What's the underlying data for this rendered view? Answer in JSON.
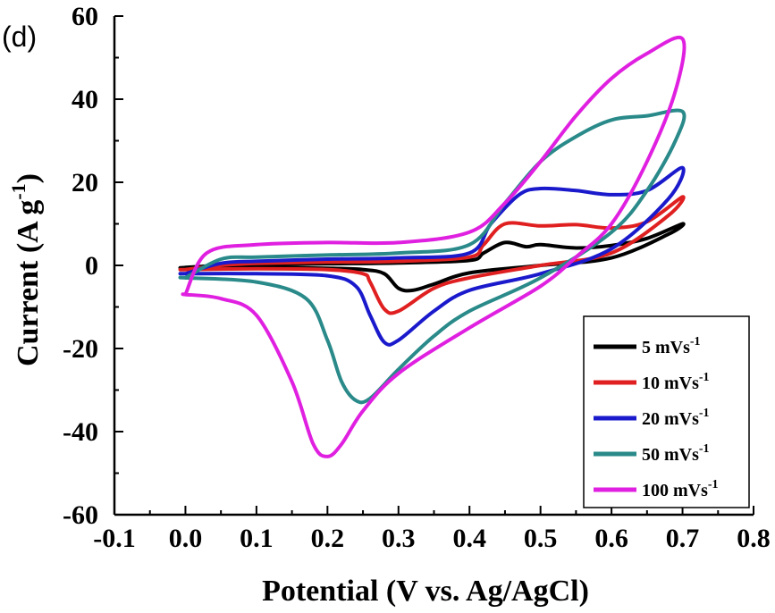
{
  "panel_label": "(d)",
  "chart_data": {
    "type": "line",
    "xlabel": "Potential (V vs. Ag/AgCl)",
    "ylabel": "Current (A g",
    "ylabel_sup": "-1",
    "ylabel_end": ")",
    "xlim": [
      -0.1,
      0.8
    ],
    "ylim": [
      -60,
      60
    ],
    "xticks": [
      -0.1,
      0.0,
      0.1,
      0.2,
      0.3,
      0.4,
      0.5,
      0.6,
      0.7,
      0.8
    ],
    "xtick_labels": [
      "-0.1",
      "0.0",
      "0.1",
      "0.2",
      "0.3",
      "0.4",
      "0.5",
      "0.6",
      "0.7",
      "0.8"
    ],
    "yticks": [
      -60,
      -40,
      -20,
      0,
      20,
      40,
      60
    ],
    "ytick_labels": [
      "-60",
      "-40",
      "-20",
      "0",
      "20",
      "40",
      "60"
    ],
    "legend_position": "bottom-right",
    "series": [
      {
        "name": "5 mVs",
        "sup": "-1",
        "color": "#000000",
        "x": [
          0.0,
          0.05,
          0.1,
          0.2,
          0.3,
          0.4,
          0.42,
          0.45,
          0.48,
          0.5,
          0.55,
          0.6,
          0.65,
          0.7,
          0.68,
          0.6,
          0.5,
          0.4,
          0.35,
          0.32,
          0.3,
          0.28,
          0.25,
          0.2,
          0.1,
          0.0,
          0.0
        ],
        "y": [
          -0.5,
          0.0,
          0.2,
          0.4,
          0.6,
          1.2,
          3.0,
          5.5,
          4.5,
          5.0,
          4.2,
          4.8,
          6.5,
          10.0,
          7.5,
          1.8,
          0.0,
          -1.8,
          -4.5,
          -6.0,
          -5.5,
          -2.0,
          -1.0,
          -0.7,
          -0.5,
          -0.6,
          -0.5
        ]
      },
      {
        "name": "10 mVs",
        "sup": "-1",
        "color": "#e02020",
        "x": [
          0.0,
          0.05,
          0.1,
          0.2,
          0.3,
          0.4,
          0.42,
          0.45,
          0.5,
          0.55,
          0.6,
          0.65,
          0.7,
          0.68,
          0.6,
          0.5,
          0.4,
          0.35,
          0.3,
          0.28,
          0.26,
          0.25,
          0.2,
          0.1,
          0.0,
          0.0
        ],
        "y": [
          -1.0,
          0.0,
          0.5,
          0.8,
          1.0,
          2.0,
          5.0,
          10.0,
          9.5,
          9.8,
          9.0,
          10.5,
          16.5,
          12.0,
          3.0,
          0.0,
          -3.0,
          -5.5,
          -11.0,
          -10.5,
          -4.0,
          -2.0,
          -1.0,
          -0.8,
          -1.0,
          -1.0
        ]
      },
      {
        "name": "20 mVs",
        "sup": "-1",
        "color": "#1a1acc",
        "x": [
          0.0,
          0.05,
          0.1,
          0.2,
          0.3,
          0.4,
          0.43,
          0.47,
          0.5,
          0.55,
          0.6,
          0.65,
          0.7,
          0.68,
          0.6,
          0.5,
          0.4,
          0.35,
          0.3,
          0.28,
          0.26,
          0.24,
          0.2,
          0.1,
          0.0,
          0.0
        ],
        "y": [
          -2.0,
          0.5,
          1.0,
          1.5,
          1.8,
          3.0,
          10.0,
          17.0,
          18.5,
          18.0,
          17.0,
          18.0,
          23.5,
          16.0,
          4.0,
          -2.0,
          -6.0,
          -11.0,
          -18.0,
          -18.5,
          -12.0,
          -5.0,
          -2.5,
          -2.0,
          -2.0,
          -2.0
        ]
      },
      {
        "name": "50 mVs",
        "sup": "-1",
        "color": "#2a8a8a",
        "x": [
          0.0,
          0.05,
          0.1,
          0.2,
          0.3,
          0.4,
          0.45,
          0.5,
          0.55,
          0.6,
          0.65,
          0.7,
          0.69,
          0.65,
          0.6,
          0.5,
          0.4,
          0.35,
          0.3,
          0.26,
          0.24,
          0.22,
          0.2,
          0.17,
          0.1,
          0.0,
          0.0
        ],
        "y": [
          -3.0,
          1.5,
          2.0,
          2.5,
          3.0,
          5.0,
          15.0,
          25.0,
          31.0,
          35.0,
          36.0,
          37.0,
          30.0,
          18.0,
          8.0,
          -3.0,
          -11.0,
          -17.0,
          -25.0,
          -32.0,
          -32.5,
          -28.0,
          -18.0,
          -8.0,
          -4.0,
          -3.0,
          -3.0
        ]
      },
      {
        "name": "100 mVs",
        "sup": "-1",
        "color": "#e020e0",
        "x": [
          0.0,
          0.03,
          0.1,
          0.2,
          0.3,
          0.4,
          0.45,
          0.5,
          0.55,
          0.6,
          0.65,
          0.7,
          0.69,
          0.65,
          0.6,
          0.55,
          0.5,
          0.4,
          0.3,
          0.25,
          0.22,
          0.2,
          0.18,
          0.15,
          0.1,
          0.05,
          0.0,
          0.0
        ],
        "y": [
          -7.0,
          3.0,
          5.0,
          5.5,
          5.5,
          8.0,
          15.0,
          25.0,
          36.0,
          45.0,
          51.0,
          54.5,
          42.0,
          25.0,
          10.0,
          2.0,
          -5.0,
          -15.0,
          -26.0,
          -35.0,
          -43.0,
          -46.0,
          -43.0,
          -28.0,
          -12.0,
          -8.0,
          -7.0,
          -7.0
        ]
      }
    ]
  }
}
